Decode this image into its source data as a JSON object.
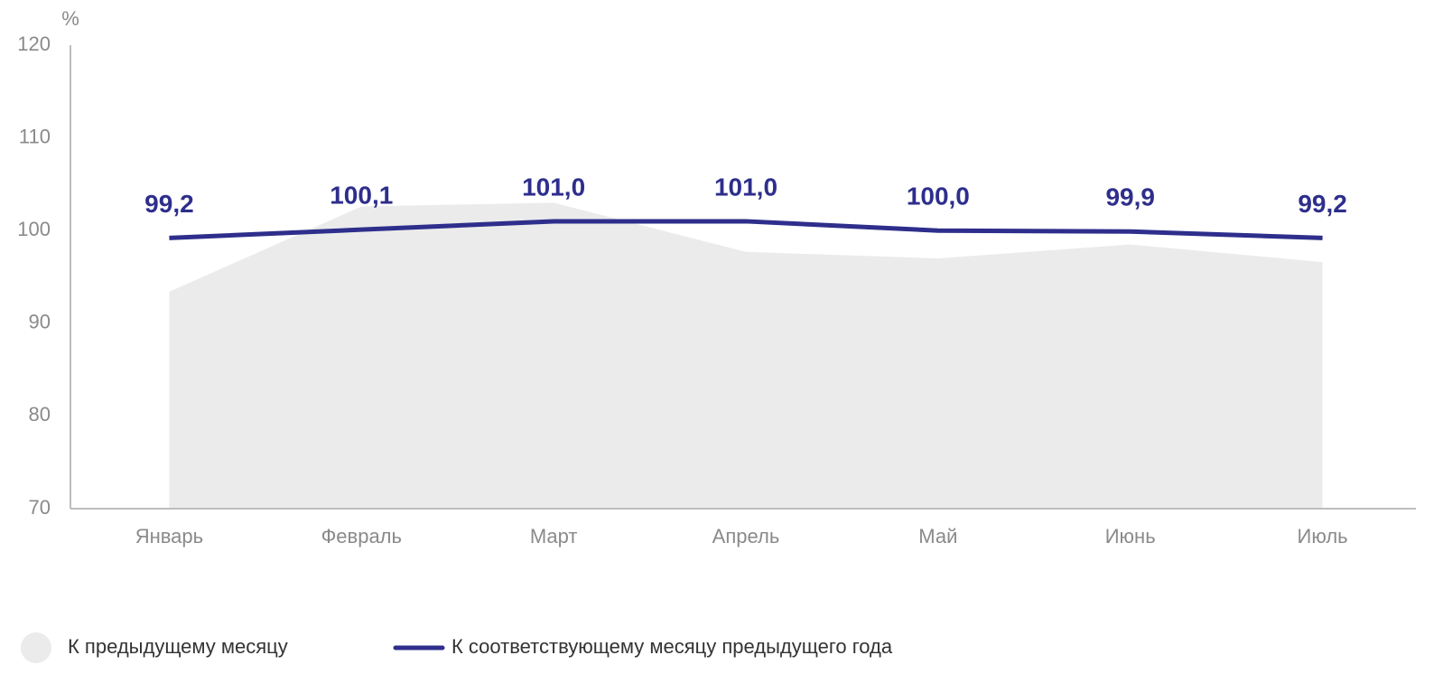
{
  "chart_data": {
    "type": "line",
    "y_axis_label": "%",
    "categories": [
      "Январь",
      "Февраль",
      "Март",
      "Апрель",
      "Май",
      "Июнь",
      "Июль"
    ],
    "series": [
      {
        "name": "К предыдущему месяцу",
        "type": "area",
        "color": "#ebebeb",
        "values": [
          93.4,
          102.6,
          103.0,
          97.7,
          97.0,
          98.5,
          96.6
        ]
      },
      {
        "name": "К соответствующему месяцу предыдущего года",
        "type": "line",
        "color": "#2e2e8c",
        "values": [
          99.2,
          100.1,
          101.0,
          101.0,
          100.0,
          99.9,
          99.2
        ],
        "value_labels": [
          "99,2",
          "100,1",
          "101,0",
          "101,0",
          "100,0",
          "99,9",
          "99,2"
        ]
      }
    ],
    "ylim": [
      70,
      120
    ],
    "yticks": [
      70,
      80,
      90,
      100,
      110,
      120
    ],
    "grid": false,
    "legend": "bottom"
  }
}
